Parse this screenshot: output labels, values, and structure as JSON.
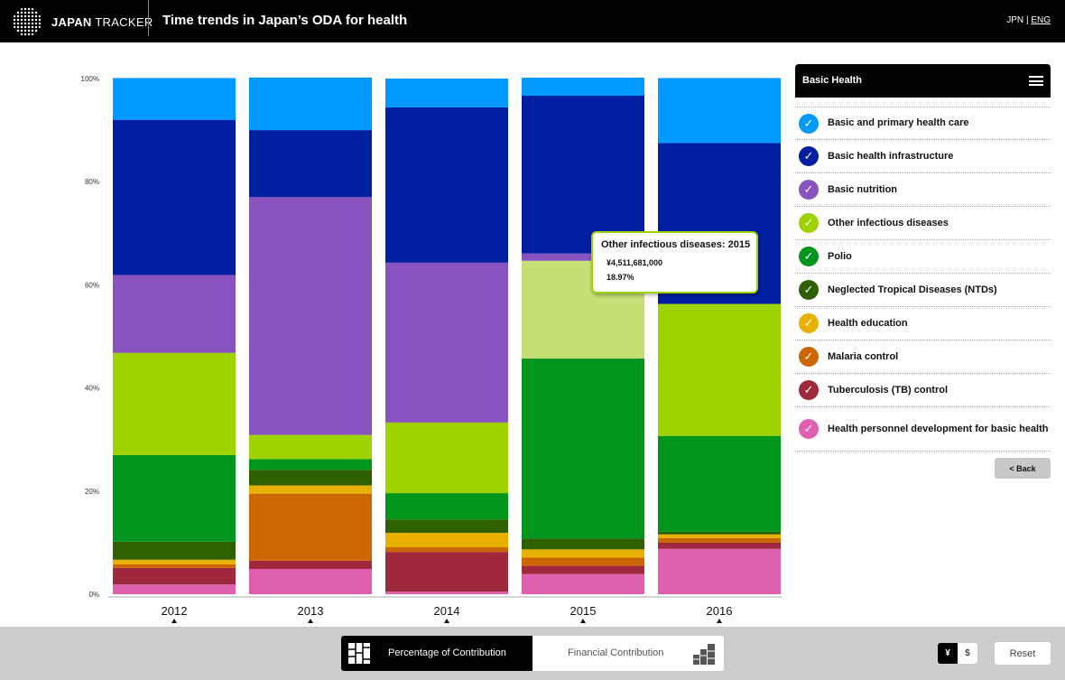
{
  "header": {
    "brand_bold": "JAPAN",
    "brand_rest": " TRACKER",
    "title": "Time trends in Japan’s ODA for health",
    "lang_jpn": "JPN",
    "lang_sep": " | ",
    "lang_eng": "ENG"
  },
  "panel": {
    "title": "Basic Health",
    "back_label": "< Back"
  },
  "footer": {
    "percentage_label": "Percentage of Contribution",
    "financial_label": "Financial Contribution",
    "yen": "¥",
    "dollar": "$",
    "reset": "Reset"
  },
  "tooltip": {
    "title": "Other infectious diseases: 2015",
    "value": "¥4,511,681,000",
    "percent": "18.97%"
  },
  "chart_data": {
    "type": "bar",
    "stacked": true,
    "normalized": true,
    "categories": [
      "2012",
      "2013",
      "2014",
      "2015",
      "2016"
    ],
    "ylim": [
      0,
      100
    ],
    "yticks": [
      "0%",
      "20%",
      "40%",
      "60%",
      "80%",
      "100%"
    ],
    "highlighted": {
      "series": "Other infectious diseases",
      "category": "2015"
    },
    "series": [
      {
        "name": "Health personnel development for basic health",
        "color": "#e060b0",
        "values": [
          1.9,
          4.9,
          0.5,
          3.9,
          8.8
        ]
      },
      {
        "name": "Tuberculosis (TB) control",
        "color": "#a0283c",
        "values": [
          3.2,
          1.6,
          7.7,
          1.6,
          1.2
        ]
      },
      {
        "name": "Malaria control",
        "color": "#cc6600",
        "values": [
          0.7,
          13.0,
          0.9,
          1.6,
          0.9
        ]
      },
      {
        "name": "Health education",
        "color": "#e8b000",
        "values": [
          0.9,
          1.6,
          2.8,
          1.6,
          0.7
        ]
      },
      {
        "name": "Neglected Tropical Diseases (NTDs)",
        "color": "#2f6000",
        "values": [
          3.5,
          3.0,
          2.6,
          2.1,
          0.5
        ]
      },
      {
        "name": "Polio",
        "color": "#00961e",
        "values": [
          16.8,
          2.1,
          5.1,
          34.9,
          18.6
        ]
      },
      {
        "name": "Other infectious diseases",
        "color": "#9ed200",
        "values": [
          19.8,
          4.7,
          13.7,
          18.97,
          25.6
        ]
      },
      {
        "name": "Basic nutrition",
        "color": "#8852c0",
        "values": [
          15.1,
          46.1,
          31.0,
          1.4,
          0
        ]
      },
      {
        "name": "Basic health infrastructure",
        "color": "#001fa0",
        "values": [
          30.1,
          13.0,
          30.1,
          30.6,
          31.2
        ]
      },
      {
        "name": "Basic and primary health care",
        "color": "#0099ff",
        "values": [
          8.1,
          10.2,
          5.6,
          3.5,
          12.6
        ]
      }
    ]
  }
}
